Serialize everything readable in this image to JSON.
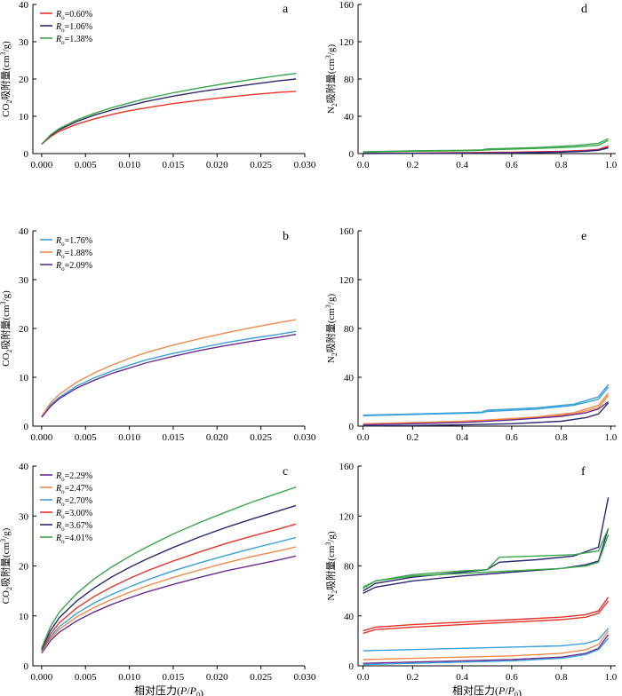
{
  "xlabel": "相对压力(P/P₀)",
  "chart_data": [
    {
      "panel": "a",
      "type": "line",
      "ylabel": "CO₂吸附量(cm³/g)",
      "xlim": [
        -0.001,
        0.03
      ],
      "ylim": [
        0,
        40
      ],
      "xticks": [
        "0.000",
        "0.005",
        "0.010",
        "0.015",
        "0.020",
        "0.025",
        "0.030"
      ],
      "yticks": [
        "0",
        "10",
        "20",
        "30",
        "40"
      ],
      "legend_position": "top-left",
      "series": [
        {
          "name": "Ro=0.60%",
          "color": "#e8332b",
          "x": [
            0,
            0.001,
            0.002,
            0.004,
            0.006,
            0.008,
            0.01,
            0.012,
            0.015,
            0.018,
            0.021,
            0.024,
            0.027,
            0.029
          ],
          "y": [
            2.5,
            4.5,
            6.0,
            7.9,
            9.3,
            10.5,
            11.5,
            12.3,
            13.4,
            14.3,
            15.1,
            15.8,
            16.4,
            16.7
          ]
        },
        {
          "name": "Ro=1.06%",
          "color": "#2b2a6e",
          "x": [
            0,
            0.001,
            0.002,
            0.004,
            0.006,
            0.008,
            0.01,
            0.012,
            0.015,
            0.018,
            0.021,
            0.024,
            0.027,
            0.029
          ],
          "y": [
            2.5,
            4.8,
            6.4,
            8.6,
            10.3,
            11.7,
            12.9,
            14.0,
            15.4,
            16.6,
            17.6,
            18.6,
            19.5,
            20.0
          ]
        },
        {
          "name": "Ro=1.38%",
          "color": "#3aa54a",
          "x": [
            0,
            0.001,
            0.002,
            0.004,
            0.006,
            0.008,
            0.01,
            0.012,
            0.015,
            0.018,
            0.021,
            0.024,
            0.027,
            0.029
          ],
          "y": [
            2.5,
            5.0,
            6.7,
            9.0,
            10.8,
            12.3,
            13.6,
            14.8,
            16.3,
            17.6,
            18.8,
            19.9,
            20.9,
            21.5
          ]
        }
      ]
    },
    {
      "panel": "d",
      "type": "line",
      "ylabel": "N₂吸附量(cm³/g)",
      "xlim": [
        -0.02,
        1.02
      ],
      "ylim": [
        0,
        160
      ],
      "xticks": [
        "0.0",
        "0.2",
        "0.4",
        "0.6",
        "0.8",
        "1.0"
      ],
      "yticks": [
        "0",
        "40",
        "80",
        "120",
        "160"
      ],
      "series": [
        {
          "color": "#3aa54a",
          "x": [
            0,
            0.2,
            0.4,
            0.48,
            0.5,
            0.7,
            0.85,
            0.95,
            0.99
          ],
          "y": [
            2,
            3,
            3.5,
            4,
            5,
            6.5,
            8.5,
            11,
            16
          ]
        },
        {
          "color": "#3aa54a",
          "x": [
            0,
            0.2,
            0.4,
            0.48,
            0.5,
            0.7,
            0.85,
            0.95,
            0.99
          ],
          "y": [
            1.5,
            2.5,
            3,
            3.5,
            4,
            5.5,
            7,
            9,
            14
          ]
        },
        {
          "color": "#e8332b",
          "x": [
            0,
            0.2,
            0.4,
            0.6,
            0.8,
            0.9,
            0.95,
            0.99
          ],
          "y": [
            0.3,
            0.6,
            1,
            1.5,
            2.5,
            3.5,
            4.5,
            8
          ]
        },
        {
          "color": "#6b2c8f",
          "x": [
            0,
            0.2,
            0.4,
            0.6,
            0.8,
            0.9,
            0.95,
            0.99
          ],
          "y": [
            0.1,
            0.3,
            0.6,
            1,
            2,
            3,
            4,
            6.5
          ]
        },
        {
          "color": "#2b2a6e",
          "x": [
            0,
            0.2,
            0.4,
            0.6,
            0.8,
            0.9,
            0.95,
            0.99
          ],
          "y": [
            0.1,
            0.2,
            0.4,
            0.7,
            1.5,
            2.5,
            3.5,
            6
          ]
        }
      ]
    },
    {
      "panel": "b",
      "type": "line",
      "ylabel": "CO₂吸附量(cm³/g)",
      "xlim": [
        -0.001,
        0.03
      ],
      "ylim": [
        0,
        40
      ],
      "xticks": [
        "0.000",
        "0.005",
        "0.010",
        "0.015",
        "0.020",
        "0.025",
        "0.030"
      ],
      "yticks": [
        "0",
        "10",
        "20",
        "30",
        "40"
      ],
      "legend_position": "top-left",
      "series": [
        {
          "name": "Ro=1.76%",
          "color": "#3aa0d8",
          "x": [
            0,
            0.001,
            0.002,
            0.004,
            0.006,
            0.008,
            0.01,
            0.012,
            0.015,
            0.018,
            0.021,
            0.024,
            0.027,
            0.029
          ],
          "y": [
            2.0,
            4.3,
            5.9,
            8.2,
            9.9,
            11.3,
            12.5,
            13.6,
            14.9,
            16.0,
            17.1,
            18.0,
            18.8,
            19.4
          ]
        },
        {
          "name": "Ro=1.88%",
          "color": "#ee8a4c",
          "x": [
            0,
            0.001,
            0.002,
            0.004,
            0.006,
            0.008,
            0.01,
            0.012,
            0.015,
            0.018,
            0.021,
            0.024,
            0.027,
            0.029
          ],
          "y": [
            2.0,
            4.7,
            6.5,
            9.0,
            10.9,
            12.5,
            13.9,
            15.1,
            16.6,
            17.9,
            19.1,
            20.2,
            21.2,
            21.8
          ]
        },
        {
          "name": "Ro=2.09%",
          "color": "#6b2c8f",
          "x": [
            0,
            0.001,
            0.002,
            0.004,
            0.006,
            0.008,
            0.01,
            0.012,
            0.015,
            0.018,
            0.021,
            0.024,
            0.027,
            0.029
          ],
          "y": [
            1.8,
            4.0,
            5.6,
            7.8,
            9.4,
            10.8,
            11.9,
            13.0,
            14.3,
            15.5,
            16.5,
            17.4,
            18.2,
            18.8
          ]
        }
      ]
    },
    {
      "panel": "e",
      "type": "line",
      "ylabel": "N₂吸附量(cm³/g)",
      "xlim": [
        -0.02,
        1.02
      ],
      "ylim": [
        0,
        160
      ],
      "xticks": [
        "0.0",
        "0.2",
        "0.4",
        "0.6",
        "0.8",
        "1.0"
      ],
      "yticks": [
        "0",
        "40",
        "80",
        "120",
        "160"
      ],
      "series": [
        {
          "color": "#3aa0d8",
          "x": [
            0,
            0.2,
            0.4,
            0.48,
            0.5,
            0.7,
            0.85,
            0.95,
            0.99
          ],
          "y": [
            9,
            10,
            11,
            11.5,
            13,
            15,
            18,
            24,
            34
          ]
        },
        {
          "color": "#3aa0d8",
          "x": [
            0,
            0.2,
            0.4,
            0.48,
            0.5,
            0.7,
            0.85,
            0.95,
            0.99
          ],
          "y": [
            8.5,
            9.5,
            10.5,
            11,
            12,
            14,
            17,
            22,
            32
          ]
        },
        {
          "color": "#ee8a4c",
          "x": [
            0,
            0.2,
            0.4,
            0.5,
            0.7,
            0.85,
            0.95,
            0.99
          ],
          "y": [
            2,
            3,
            4,
            5,
            7.5,
            11,
            17,
            27
          ]
        },
        {
          "color": "#ee8a4c",
          "x": [
            0,
            0.2,
            0.4,
            0.5,
            0.7,
            0.85,
            0.95,
            0.99
          ],
          "y": [
            1.5,
            2.5,
            3.5,
            4.5,
            6.5,
            10,
            15,
            25
          ]
        },
        {
          "color": "#6b2c8f",
          "x": [
            0,
            0.2,
            0.4,
            0.6,
            0.8,
            0.9,
            0.95,
            0.99
          ],
          "y": [
            1,
            2,
            3,
            5,
            8,
            11,
            14,
            20
          ]
        },
        {
          "color": "#2b2a6e",
          "x": [
            0,
            0.2,
            0.4,
            0.6,
            0.8,
            0.9,
            0.95,
            0.99
          ],
          "y": [
            0.2,
            0.5,
            1,
            2,
            4,
            7,
            10,
            19
          ]
        }
      ]
    },
    {
      "panel": "c",
      "type": "line",
      "ylabel": "CO₂吸附量(cm³/g)",
      "xlabel": "相对压力(P/P₀)",
      "xlim": [
        -0.001,
        0.03
      ],
      "ylim": [
        0,
        40
      ],
      "xticks": [
        "0.000",
        "0.005",
        "0.010",
        "0.015",
        "0.020",
        "0.025",
        "0.030"
      ],
      "yticks": [
        "0",
        "10",
        "20",
        "30",
        "40"
      ],
      "legend_position": "top-left",
      "series": [
        {
          "name": "Ro=2.29%",
          "color": "#6b2c8f",
          "x": [
            0,
            0.001,
            0.002,
            0.004,
            0.006,
            0.008,
            0.01,
            0.012,
            0.015,
            0.018,
            0.021,
            0.024,
            0.027,
            0.029
          ],
          "y": [
            2.5,
            5.0,
            6.7,
            9.0,
            10.8,
            12.3,
            13.6,
            14.8,
            16.3,
            17.7,
            19.0,
            20.1,
            21.2,
            22.0
          ]
        },
        {
          "name": "Ro=2.47%",
          "color": "#ee8a4c",
          "x": [
            0,
            0.001,
            0.002,
            0.004,
            0.006,
            0.008,
            0.01,
            0.012,
            0.015,
            0.018,
            0.021,
            0.024,
            0.027,
            0.029
          ],
          "y": [
            2.7,
            5.4,
            7.3,
            9.8,
            11.7,
            13.3,
            14.7,
            16.0,
            17.7,
            19.2,
            20.6,
            21.9,
            23.0,
            23.8
          ]
        },
        {
          "name": "Ro=2.70%",
          "color": "#3aa0d8",
          "x": [
            0,
            0.001,
            0.002,
            0.004,
            0.006,
            0.008,
            0.01,
            0.012,
            0.015,
            0.018,
            0.021,
            0.024,
            0.027,
            0.029
          ],
          "y": [
            2.8,
            5.8,
            7.8,
            10.5,
            12.6,
            14.3,
            15.8,
            17.2,
            19.0,
            20.6,
            22.1,
            23.5,
            24.8,
            25.7
          ]
        },
        {
          "name": "Ro=3.00%",
          "color": "#e8332b",
          "x": [
            0,
            0.001,
            0.002,
            0.004,
            0.006,
            0.008,
            0.01,
            0.012,
            0.015,
            0.018,
            0.021,
            0.024,
            0.027,
            0.029
          ],
          "y": [
            3.0,
            6.3,
            8.6,
            11.6,
            13.9,
            15.8,
            17.5,
            19.0,
            21.0,
            22.8,
            24.5,
            26.0,
            27.4,
            28.4
          ]
        },
        {
          "name": "Ro=3.67%",
          "color": "#2b2a6e",
          "x": [
            0,
            0.001,
            0.002,
            0.004,
            0.006,
            0.008,
            0.01,
            0.012,
            0.015,
            0.018,
            0.021,
            0.024,
            0.027,
            0.029
          ],
          "y": [
            3.3,
            7.0,
            9.6,
            13.0,
            15.6,
            17.8,
            19.7,
            21.4,
            23.7,
            25.8,
            27.7,
            29.4,
            31.0,
            32.1
          ]
        },
        {
          "name": "Ro=4.01%",
          "color": "#3aa54a",
          "x": [
            0,
            0.001,
            0.002,
            0.004,
            0.006,
            0.008,
            0.01,
            0.012,
            0.015,
            0.018,
            0.021,
            0.024,
            0.027,
            0.029
          ],
          "y": [
            3.6,
            7.8,
            10.7,
            14.5,
            17.4,
            19.8,
            21.9,
            23.8,
            26.4,
            28.7,
            30.8,
            32.8,
            34.6,
            35.8
          ]
        }
      ]
    },
    {
      "panel": "f",
      "type": "line",
      "ylabel": "N₂吸附量(cm³/g)",
      "xlabel": "相对压力(P/P₀)",
      "xlim": [
        -0.02,
        1.02
      ],
      "ylim": [
        0,
        160
      ],
      "xticks": [
        "0.0",
        "0.2",
        "0.4",
        "0.6",
        "0.8",
        "1.0"
      ],
      "yticks": [
        "0",
        "40",
        "80",
        "120",
        "160"
      ],
      "series": [
        {
          "color": "#2b2a6e",
          "x": [
            0,
            0.05,
            0.2,
            0.4,
            0.5,
            0.55,
            0.7,
            0.85,
            0.95,
            0.99
          ],
          "y": [
            60,
            66,
            71,
            75,
            77,
            83,
            85,
            88,
            95,
            135
          ]
        },
        {
          "color": "#2b2a6e",
          "x": [
            0,
            0.05,
            0.2,
            0.4,
            0.6,
            0.8,
            0.9,
            0.95,
            0.99
          ],
          "y": [
            58,
            63,
            68,
            72,
            75,
            78,
            81,
            84,
            110
          ]
        },
        {
          "color": "#3aa54a",
          "x": [
            0,
            0.05,
            0.2,
            0.4,
            0.5,
            0.55,
            0.7,
            0.85,
            0.95,
            0.99
          ],
          "y": [
            62,
            68,
            73,
            76,
            77,
            87,
            88,
            89,
            92,
            110
          ]
        },
        {
          "color": "#3aa54a",
          "x": [
            0,
            0.05,
            0.2,
            0.4,
            0.6,
            0.8,
            0.9,
            0.95,
            0.99
          ],
          "y": [
            63,
            68,
            72,
            74,
            76,
            78,
            80,
            83,
            105
          ]
        },
        {
          "color": "#e8332b",
          "x": [
            0,
            0.05,
            0.2,
            0.4,
            0.6,
            0.8,
            0.9,
            0.95,
            0.99
          ],
          "y": [
            28,
            31,
            33,
            35,
            37,
            39,
            41,
            44,
            55
          ]
        },
        {
          "color": "#e8332b",
          "x": [
            0,
            0.05,
            0.2,
            0.4,
            0.6,
            0.8,
            0.9,
            0.95,
            0.99
          ],
          "y": [
            26,
            29,
            31,
            33,
            35,
            37,
            39,
            42,
            52
          ]
        },
        {
          "color": "#3aa0d8",
          "x": [
            0,
            0.2,
            0.4,
            0.6,
            0.8,
            0.9,
            0.95,
            0.99
          ],
          "y": [
            12,
            13,
            14,
            15,
            16,
            18,
            21,
            30
          ]
        },
        {
          "color": "#ee8a4c",
          "x": [
            0,
            0.2,
            0.4,
            0.6,
            0.8,
            0.9,
            0.95,
            0.99
          ],
          "y": [
            5,
            6,
            7,
            8,
            10,
            13,
            17,
            28
          ]
        },
        {
          "color": "#6b2c8f",
          "x": [
            0,
            0.2,
            0.4,
            0.6,
            0.8,
            0.9,
            0.95,
            0.99
          ],
          "y": [
            2,
            3,
            4,
            5,
            7,
            10,
            14,
            25
          ]
        },
        {
          "color": "#3aa0d8",
          "x": [
            0,
            0.2,
            0.4,
            0.6,
            0.8,
            0.9,
            0.95,
            0.99
          ],
          "y": [
            1,
            2,
            3,
            4,
            6,
            9,
            13,
            22
          ]
        }
      ]
    }
  ]
}
